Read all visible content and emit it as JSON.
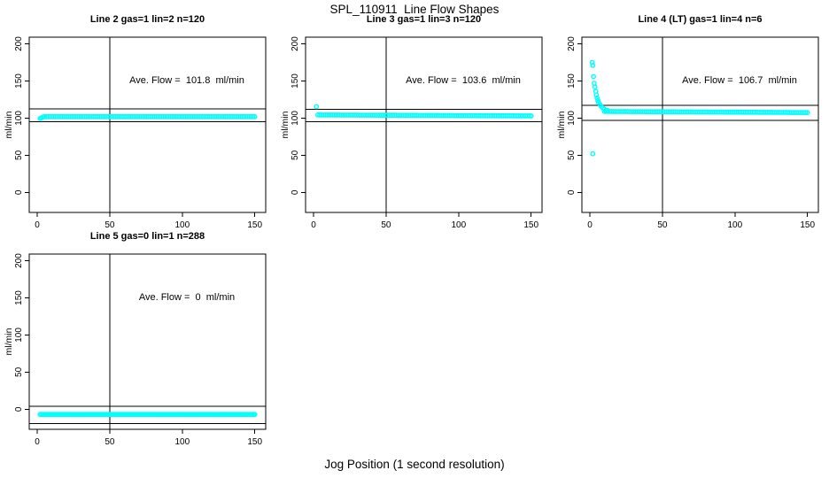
{
  "main_title": "SPL_110911  Line Flow Shapes",
  "point_color": "#00FFFF",
  "line_color": "#000000",
  "chart_data": {
    "type": "scatter",
    "title": "SPL_110911  Line Flow Shapes",
    "xlabel": "Jog Position (1 second resolution)",
    "ylabel": "ml/min",
    "x_ticks": [
      0,
      50,
      100,
      150
    ],
    "y_ticks": [
      0,
      50,
      100,
      150,
      200
    ],
    "xlim": [
      -5.5,
      157.5
    ],
    "ylim": [
      -27,
      209
    ],
    "grid": false,
    "legend": false,
    "vertical_ref_line_x": 50,
    "panels": [
      {
        "title": "Line 2 gas=1 lin=2 n=120",
        "annotation": "Ave. Flow =  101.8  ml/min",
        "ave_flow_ml_min": 101.8,
        "n": 120,
        "ref_lines_y": [
          112.5,
          95
        ],
        "band": {
          "x_start": 5,
          "x_end": 150,
          "y_start": 102,
          "y_end": 102,
          "n": 116
        },
        "points": [
          [
            2,
            99.5
          ],
          [
            2.8,
            100.3
          ],
          [
            3.6,
            101
          ],
          [
            4.4,
            101.6
          ]
        ]
      },
      {
        "title": "Line 3 gas=1 lin=3 n=120",
        "annotation": "Ave. Flow =  103.6  ml/min",
        "ave_flow_ml_min": 103.6,
        "n": 120,
        "ref_lines_y": [
          112,
          95
        ],
        "band": {
          "x_start": 3,
          "x_end": 150,
          "y_start": 104.3,
          "y_end": 103,
          "n": 118
        },
        "points": [
          [
            2,
            115.5
          ]
        ]
      },
      {
        "title": "Line 4 (LT) gas=1 lin=4 n=6",
        "annotation": "Ave. Flow =  106.7  ml/min",
        "ave_flow_ml_min": 106.7,
        "n": 6,
        "ref_lines_y": [
          117,
          97
        ],
        "band": {
          "x_start": 10,
          "x_end": 150,
          "y_start": 109,
          "y_end": 107.5,
          "n": 112
        },
        "points": [
          [
            1.5,
            175
          ],
          [
            2,
            171
          ],
          [
            2.5,
            156
          ],
          [
            3,
            147
          ],
          [
            3.5,
            142
          ],
          [
            4,
            136
          ],
          [
            4.5,
            131
          ],
          [
            5,
            127
          ],
          [
            5.5,
            124
          ],
          [
            6,
            121
          ],
          [
            7,
            118
          ],
          [
            8,
            115.5
          ],
          [
            9,
            113.5
          ],
          [
            10,
            112
          ],
          [
            12,
            110.5
          ],
          [
            2,
            52
          ]
        ]
      },
      {
        "title": "Line 5 gas=0 lin=1 n=288",
        "annotation": "Ave. Flow =  0  ml/min",
        "ave_flow_ml_min": 0,
        "n": 288,
        "ref_lines_y": [
          4,
          -19
        ],
        "band": {
          "x_start": 2,
          "x_end": 150,
          "y_start": -7,
          "y_end": -7,
          "n": 150
        },
        "points": []
      }
    ]
  }
}
